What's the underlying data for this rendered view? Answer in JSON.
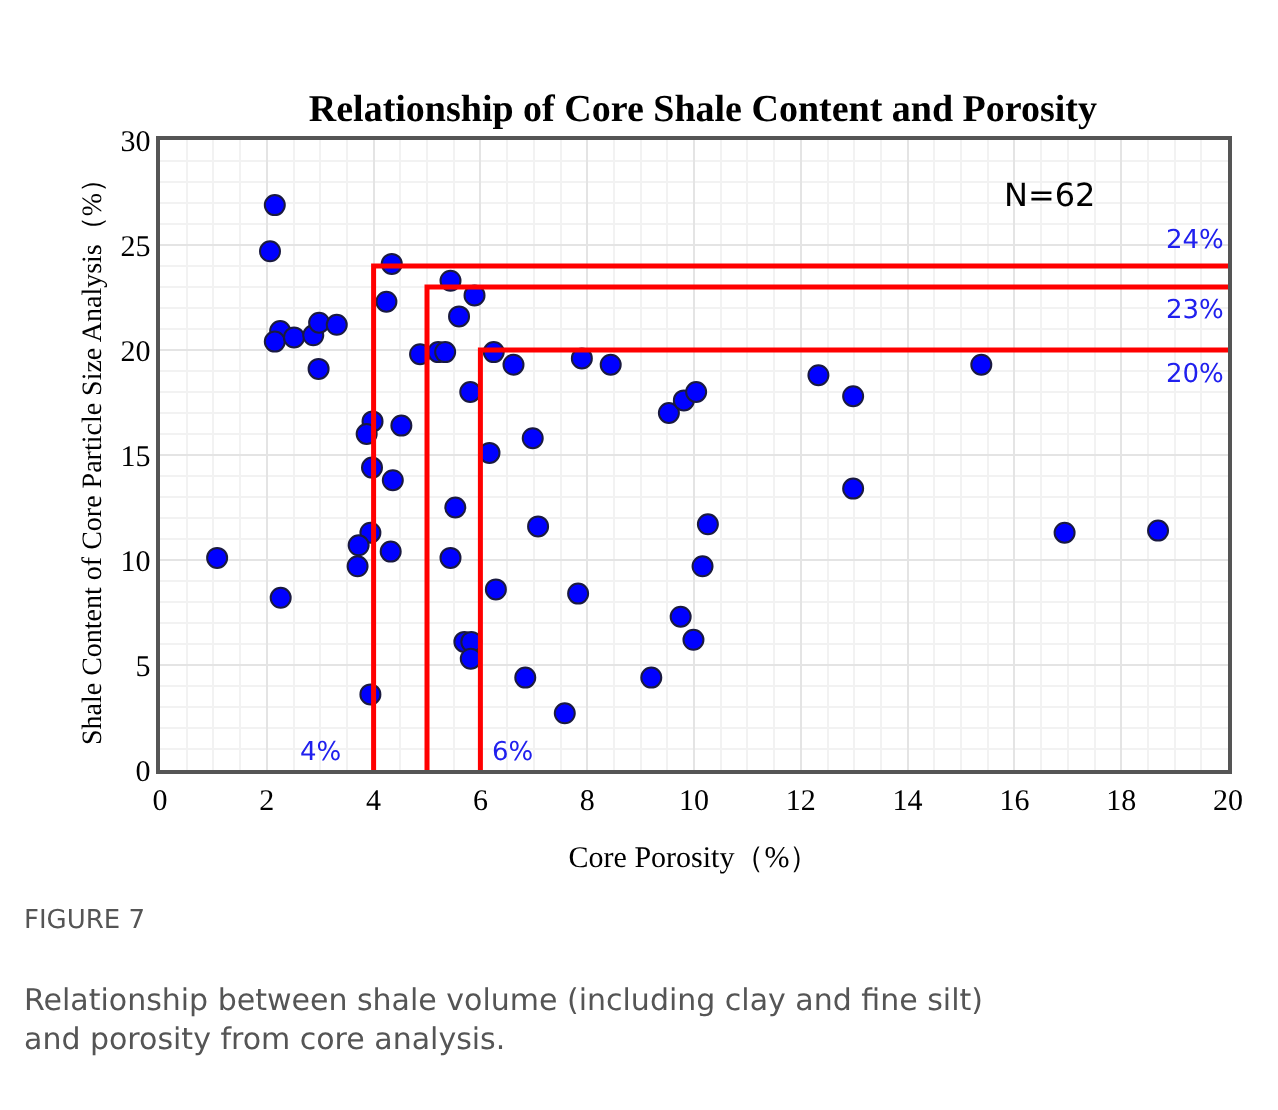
{
  "chart_data": {
    "type": "scatter",
    "title": "Relationship of Core Shale Content and Porosity",
    "xlabel": "Core Porosity（%）",
    "ylabel": "Shale Content of Core Particle Size Analysis（%）",
    "xlim": [
      0,
      20
    ],
    "xticks": [
      0,
      2,
      4,
      6,
      8,
      10,
      12,
      14,
      16,
      18,
      20
    ],
    "ylim": [
      0,
      30
    ],
    "yticks": [
      0,
      5,
      10,
      15,
      20,
      25,
      30
    ],
    "grid": true,
    "series": [
      {
        "marker": "circle",
        "color": "#0000ff",
        "x": [
          2.15,
          2.06,
          2.25,
          2.15,
          2.51,
          2.87,
          2.98,
          3.31,
          2.97,
          1.07,
          2.26,
          4.34,
          4.24,
          4.87,
          5.21,
          5.34,
          5.44,
          5.89,
          5.6,
          6.25,
          6.62,
          5.81,
          3.98,
          3.87,
          4.52,
          3.97,
          4.36,
          6.17,
          6.98,
          5.53,
          7.08,
          3.94,
          3.72,
          3.7,
          4.32,
          5.44,
          6.29,
          5.7,
          5.83,
          5.82,
          6.84,
          3.94,
          7.83,
          7.9,
          8.44,
          7.58,
          9.2,
          9.53,
          9.81,
          10.04,
          10.26,
          10.16,
          9.75,
          9.99,
          12.33,
          12.98,
          12.98,
          15.38,
          16.94,
          18.69
        ],
        "values": [
          26.9,
          24.7,
          20.9,
          20.4,
          20.6,
          20.7,
          21.3,
          21.2,
          19.1,
          10.1,
          8.2,
          24.1,
          22.3,
          19.8,
          19.9,
          19.9,
          23.3,
          22.6,
          21.6,
          19.9,
          19.3,
          18.0,
          16.6,
          16.0,
          16.4,
          14.4,
          13.8,
          15.1,
          15.8,
          12.5,
          11.6,
          11.3,
          10.7,
          9.7,
          10.4,
          10.1,
          8.6,
          6.1,
          6.1,
          5.3,
          4.4,
          3.6,
          8.4,
          19.6,
          19.3,
          2.7,
          4.4,
          17.0,
          17.6,
          18.0,
          11.7,
          9.7,
          7.3,
          6.2,
          18.8,
          17.8,
          13.4,
          19.3,
          11.3,
          11.4
        ]
      },
      {
        "type": "line",
        "color": "#ff0000",
        "x": [
          4,
          4,
          20
        ],
        "values": [
          0,
          24,
          24
        ]
      },
      {
        "type": "line",
        "color": "#ff0000",
        "x": [
          5,
          5,
          20
        ],
        "values": [
          0,
          23,
          23
        ]
      },
      {
        "type": "line",
        "color": "#ff0000",
        "x": [
          6,
          6,
          20
        ],
        "values": [
          0,
          20,
          20
        ]
      }
    ],
    "annotations": [
      "4%",
      "6%",
      "24%",
      "23%",
      "20%",
      "N=62",
      "FIGURE 7",
      "Relationship between shale volume (including clay and fine silt) and porosity from core analysis."
    ]
  }
}
